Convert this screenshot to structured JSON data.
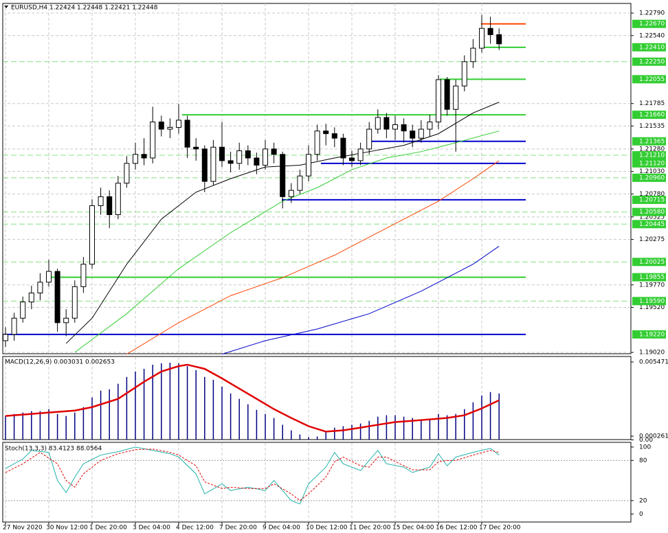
{
  "chart_data": [
    {
      "type": "candlestick",
      "title": "EURUSD,H4  1.22424 1.22448 1.22421 1.22448",
      "categories": [
        "27 Nov 2020",
        null,
        null,
        null,
        null,
        "30 Nov 12:00",
        null,
        null,
        null,
        null,
        "1 Dec 20:00",
        null,
        null,
        null,
        null,
        "3 Dec 04:00",
        null,
        null,
        null,
        null,
        "4 Dec 12:00",
        null,
        null,
        null,
        null,
        "7 Dec 20:00",
        null,
        null,
        null,
        null,
        "9 Dec 04:00",
        null,
        null,
        null,
        null,
        "10 Dec 12:00",
        null,
        null,
        null,
        null,
        "11 Dec 20:00",
        null,
        null,
        null,
        null,
        "15 Dec 04:00",
        null,
        null,
        null,
        null,
        "16 Dec 12:00",
        null,
        null,
        null,
        null,
        "17 Dec 20:00",
        null,
        null
      ],
      "open": [
        1.1915,
        1.1922,
        1.194,
        1.1958,
        1.1968,
        1.198,
        1.1992,
        1.1935,
        1.194,
        1.1975,
        1.2,
        1.2065,
        1.2075,
        1.2055,
        1.209,
        1.2112,
        1.2122,
        1.2118,
        1.2158,
        1.215,
        1.2152,
        1.216,
        1.213,
        1.2128,
        1.2092,
        1.213,
        1.2115,
        1.2112,
        1.2126,
        1.2118,
        1.211,
        1.2128,
        1.2122,
        1.2075,
        1.2082,
        1.2098,
        1.2122,
        1.2148,
        1.2145,
        1.214,
        1.2118,
        1.2115,
        1.2128,
        1.215,
        1.2163,
        1.215,
        1.2155,
        1.2148,
        1.214,
        1.215,
        1.2158,
        1.2205,
        1.2172,
        1.2198,
        1.2225,
        1.224,
        1.2262,
        1.2255
      ],
      "high": [
        1.193,
        1.1946,
        1.1964,
        1.1976,
        1.199,
        1.2005,
        1.1995,
        1.195,
        1.1982,
        1.2008,
        1.2072,
        1.2085,
        1.2082,
        1.2098,
        1.212,
        1.2135,
        1.214,
        1.2175,
        1.2165,
        1.2162,
        1.2178,
        1.2165,
        1.214,
        1.2132,
        1.2138,
        1.2158,
        1.2125,
        1.2135,
        1.2132,
        1.2124,
        1.2138,
        1.2135,
        1.2125,
        1.209,
        1.2105,
        1.2132,
        1.2155,
        1.2156,
        1.2152,
        1.2145,
        1.2126,
        1.2135,
        1.2158,
        1.2172,
        1.2168,
        1.2165,
        1.2162,
        1.2155,
        1.216,
        1.2166,
        1.221,
        1.2208,
        1.2205,
        1.2232,
        1.225,
        1.2277,
        1.2275,
        1.2262
      ],
      "low": [
        1.1908,
        1.1915,
        1.1935,
        1.195,
        1.196,
        1.1975,
        1.1925,
        1.192,
        1.1935,
        1.1968,
        1.1995,
        1.2055,
        1.204,
        1.205,
        1.2085,
        1.2105,
        1.211,
        1.2112,
        1.2142,
        1.214,
        1.2145,
        1.2118,
        1.2115,
        1.208,
        1.2088,
        1.2108,
        1.2102,
        1.2105,
        1.211,
        1.21,
        1.2105,
        1.2112,
        1.2062,
        1.2068,
        1.2078,
        1.2092,
        1.2115,
        1.2132,
        1.213,
        1.211,
        1.2108,
        1.211,
        1.2122,
        1.2145,
        1.214,
        1.2138,
        1.2135,
        1.213,
        1.2135,
        1.2142,
        1.215,
        1.2165,
        1.2125,
        1.2192,
        1.2218,
        1.2235,
        1.2245,
        1.2238
      ],
      "close": [
        1.1922,
        1.194,
        1.1958,
        1.1968,
        1.198,
        1.1992,
        1.1935,
        1.194,
        1.1975,
        1.2,
        1.2065,
        1.2075,
        1.2055,
        1.209,
        1.2112,
        1.2122,
        1.2118,
        1.2158,
        1.215,
        1.2152,
        1.216,
        1.213,
        1.2128,
        1.2092,
        1.213,
        1.2115,
        1.2112,
        1.2126,
        1.2118,
        1.211,
        1.2128,
        1.2122,
        1.2075,
        1.2082,
        1.2098,
        1.2122,
        1.2148,
        1.2145,
        1.214,
        1.2118,
        1.2115,
        1.2128,
        1.215,
        1.2163,
        1.215,
        1.2155,
        1.2148,
        1.214,
        1.215,
        1.2158,
        1.2205,
        1.2172,
        1.2198,
        1.2225,
        1.224,
        1.2262,
        1.2255,
        1.22448
      ],
      "ylim": [
        1.19005,
        1.22897
      ],
      "yticks": [
        {
          "value": 1.2279,
          "label": "1.22790"
        },
        {
          "value": 1.2254,
          "label": "1.22540"
        },
        {
          "value": 1.21785,
          "label": "1.21785"
        },
        {
          "value": 1.21535,
          "label": "1.21535"
        },
        {
          "value": 1.2128,
          "label": "1.21280"
        },
        {
          "value": 1.2103,
          "label": "1.21030"
        },
        {
          "value": 1.2078,
          "label": "1.20780"
        },
        {
          "value": 1.20525,
          "label": "1.20525"
        },
        {
          "value": 1.20275,
          "label": "1.20275"
        },
        {
          "value": 1.1977,
          "label": "1.19770"
        },
        {
          "value": 1.1952,
          "label": "1.19520"
        },
        {
          "value": 1.1902,
          "label": "1.19020"
        }
      ],
      "grid": true,
      "levels": [
        {
          "value": 1.2267,
          "label": "1.22670",
          "color": "#ff4500",
          "style": "solid"
        },
        {
          "value": 1.2241,
          "label": "1.22410",
          "color": "#32cd32",
          "style": "solid"
        },
        {
          "value": 1.2225,
          "label": "1.22250",
          "color": "#32cd32",
          "style": "dashed"
        },
        {
          "value": 1.22055,
          "label": "1.22055",
          "color": "#32cd32",
          "style": "solid"
        },
        {
          "value": 1.2166,
          "label": "1.21660",
          "color": "#32cd32",
          "style": "solid"
        },
        {
          "value": 1.21365,
          "label": "1.21365",
          "color": "#0000cd",
          "style": "solid"
        },
        {
          "value": 1.2121,
          "label": "1.21210",
          "color": "#32cd32",
          "style": "dashed"
        },
        {
          "value": 1.2112,
          "label": "1.21120",
          "color": "#0000cd",
          "style": "solid"
        },
        {
          "value": 1.2096,
          "label": "1.20960",
          "color": "#32cd32",
          "style": "dashed"
        },
        {
          "value": 1.20715,
          "label": "1.20715",
          "color": "#0000cd",
          "style": "solid"
        },
        {
          "value": 1.2058,
          "label": "1.20580",
          "color": "#32cd32",
          "style": "dashed"
        },
        {
          "value": 1.20445,
          "label": "1.20445",
          "color": "#32cd32",
          "style": "dashed"
        },
        {
          "value": 1.20025,
          "label": "1.20025",
          "color": "#32cd32",
          "style": "dashed"
        },
        {
          "value": 1.19855,
          "label": "1.19855",
          "color": "#32cd32",
          "style": "solid"
        },
        {
          "value": 1.1959,
          "label": "1.19590",
          "color": "#32cd32",
          "style": "dashed"
        },
        {
          "value": 1.1922,
          "label": "1.19220",
          "color": "#0000cd",
          "style": "solid"
        }
      ],
      "series": [
        {
          "color": "#000000",
          "x": [
            7,
            10,
            14,
            18,
            22,
            26,
            30,
            34,
            38,
            42,
            46,
            50,
            54,
            57
          ],
          "values": [
            1.1912,
            1.194,
            1.2,
            1.205,
            1.208,
            1.2095,
            1.2108,
            1.211,
            1.2118,
            1.2125,
            1.2132,
            1.2145,
            1.2168,
            1.218
          ]
        },
        {
          "color": "#32cd32",
          "x": [
            8,
            14,
            20,
            26,
            32,
            36,
            40,
            44,
            48,
            52,
            57
          ],
          "values": [
            1.1902,
            1.1945,
            1.1995,
            1.2035,
            1.207,
            1.2085,
            1.2105,
            1.2118,
            1.2125,
            1.2135,
            1.2148
          ]
        },
        {
          "color": "#ff4500",
          "x": [
            14,
            20,
            26,
            32,
            38,
            44,
            50,
            54,
            57
          ],
          "values": [
            1.19,
            1.1935,
            1.1965,
            1.1985,
            1.201,
            1.204,
            1.207,
            1.2095,
            1.2115
          ]
        },
        {
          "color": "#0000cd",
          "x": [
            25,
            30,
            36,
            42,
            48,
            54,
            57
          ],
          "values": [
            1.19,
            1.1915,
            1.1928,
            1.1945,
            1.197,
            1.2,
            1.202
          ]
        }
      ]
    },
    {
      "type": "bar",
      "title": "MACD(12,26,9) 0.003031 0.002653",
      "values": [
        0.00168,
        0.00182,
        0.00192,
        0.00202,
        0.00202,
        0.00216,
        0.00182,
        0.00168,
        0.00192,
        0.0023,
        0.00298,
        0.00346,
        0.00355,
        0.00394,
        0.00442,
        0.0048,
        0.00499,
        0.00528,
        0.00538,
        0.00542,
        0.00538,
        0.00518,
        0.0049,
        0.00442,
        0.00422,
        0.00374,
        0.00326,
        0.00288,
        0.0025,
        0.00211,
        0.00182,
        0.00154,
        0.00106,
        0.00067,
        0.00038,
        0.00019,
        0.00024,
        0.00058,
        0.00086,
        0.00096,
        0.00106,
        0.00115,
        0.00134,
        0.00163,
        0.00173,
        0.00173,
        0.00163,
        0.00154,
        0.00144,
        0.00144,
        0.00182,
        0.00173,
        0.00182,
        0.00216,
        0.00264,
        0.00312,
        0.00336,
        0.00326
      ],
      "color": "#000080",
      "series": [
        {
          "color": "#e00000",
          "x": [
            0,
            5,
            8,
            10,
            13,
            16,
            18,
            20,
            21,
            23,
            25,
            27,
            29,
            31,
            33,
            35,
            37,
            39,
            41,
            43,
            45,
            47,
            49,
            51,
            53,
            55,
            57
          ],
          "values": [
            0.00168,
            0.00192,
            0.00206,
            0.0023,
            0.00288,
            0.00408,
            0.0048,
            0.00518,
            0.00528,
            0.00499,
            0.00432,
            0.0036,
            0.00288,
            0.00216,
            0.00154,
            0.00096,
            0.00058,
            0.00067,
            0.00086,
            0.00106,
            0.00125,
            0.00134,
            0.00144,
            0.00154,
            0.00173,
            0.00221,
            0.00278
          ]
        }
      ],
      "ylim": [
        2e-05,
        0.005809
      ],
      "yticks": [
        0.005471,
        0.000261,
        {
          "value": 0,
          "label": "0.00"
        }
      ]
    },
    {
      "type": "line",
      "title": "Stoch(13,3,3) 83.4123 88.0564",
      "series": [
        {
          "color": "#20b2aa",
          "style": "solid",
          "x": [
            0,
            2,
            3,
            5,
            6,
            7,
            8,
            9,
            11,
            13,
            15,
            17,
            19,
            20,
            22,
            23,
            25,
            26,
            28,
            30,
            31,
            33,
            34,
            35,
            37,
            38,
            39,
            41,
            42,
            43,
            44,
            46,
            47,
            49,
            50,
            51,
            52,
            54,
            56,
            57
          ],
          "values": [
            68,
            82,
            95,
            92,
            50,
            32,
            55,
            75,
            88,
            93,
            100,
            95,
            90,
            85,
            60,
            30,
            45,
            35,
            40,
            35,
            50,
            20,
            15,
            45,
            70,
            92,
            75,
            65,
            80,
            95,
            75,
            70,
            62,
            70,
            90,
            72,
            85,
            92,
            98,
            88
          ]
        },
        {
          "color": "#e00000",
          "style": "dashed",
          "x": [
            0,
            2,
            4,
            6,
            7,
            8,
            9,
            11,
            13,
            15,
            17,
            19,
            20,
            22,
            23,
            25,
            26,
            28,
            30,
            31,
            33,
            34,
            35,
            37,
            38,
            39,
            41,
            42,
            43,
            44,
            46,
            47,
            49,
            50,
            51,
            52,
            54,
            56,
            57
          ],
          "values": [
            62,
            75,
            92,
            75,
            50,
            40,
            60,
            80,
            90,
            96,
            97,
            92,
            88,
            72,
            48,
            38,
            40,
            38,
            38,
            45,
            30,
            20,
            30,
            55,
            78,
            85,
            72,
            70,
            85,
            85,
            72,
            66,
            66,
            78,
            80,
            80,
            88,
            95,
            92
          ]
        }
      ],
      "levels": [
        80,
        20
      ],
      "ylim": [
        -12,
        106
      ],
      "yticks": [
        100,
        80,
        20,
        0
      ]
    }
  ]
}
